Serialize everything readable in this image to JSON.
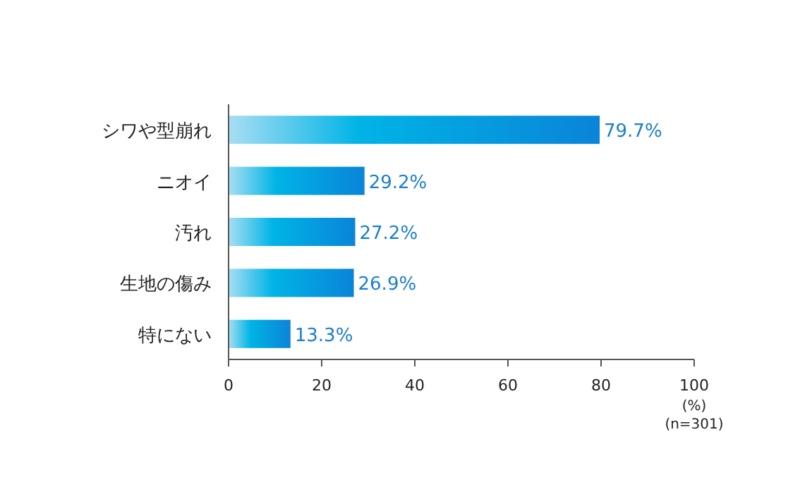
{
  "chart_data": {
    "type": "bar",
    "orientation": "horizontal",
    "categories": [
      "シワや型崩れ",
      "ニオイ",
      "汚れ",
      "生地の傷み",
      "特にない"
    ],
    "values": [
      79.7,
      29.2,
      27.2,
      26.9,
      13.3
    ],
    "value_labels": [
      "79.7%",
      "29.2%",
      "27.2%",
      "26.9%",
      "13.3%"
    ],
    "color": "#0a84d8",
    "xlim": [
      0,
      100
    ],
    "xticks": [
      0,
      20,
      40,
      60,
      80,
      100
    ],
    "xlabel": "(%)",
    "annotations": [
      "(n=301)"
    ],
    "grid": false
  }
}
